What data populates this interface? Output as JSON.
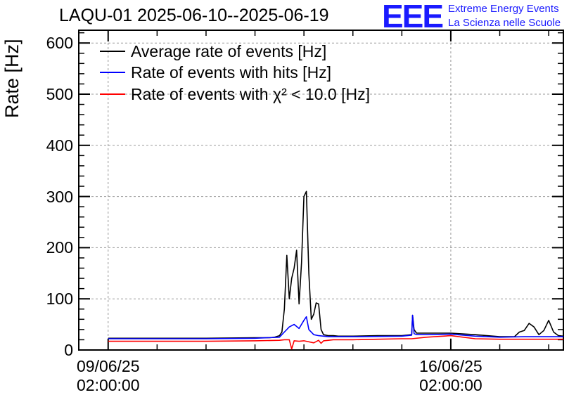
{
  "chart_data": {
    "type": "line",
    "title": "LAQU-01 2025-06-10--2025-06-19",
    "ylabel": "Rate [Hz]",
    "xlabel": "",
    "ylim": [
      0,
      625
    ],
    "xlim_days": [
      -0.6,
      9.3
    ],
    "x_unit": "days since 09/06/25 02:00:00",
    "y_ticks": [
      0,
      100,
      200,
      300,
      400,
      500,
      600
    ],
    "x_ticks": [
      {
        "value": 0,
        "line1": "09/06/25",
        "line2": "02:00:00"
      },
      {
        "value": 7,
        "line1": "16/06/25",
        "line2": "02:00:00"
      }
    ],
    "grid": true,
    "legend_position": "top-left",
    "series": [
      {
        "name": "Average rate of events [Hz]",
        "color": "#000000",
        "x": [
          0.0,
          1.0,
          2.0,
          3.0,
          3.3,
          3.4,
          3.5,
          3.55,
          3.6,
          3.65,
          3.7,
          3.75,
          3.8,
          3.85,
          3.9,
          3.95,
          4.0,
          4.05,
          4.1,
          4.15,
          4.2,
          4.25,
          4.3,
          4.35,
          4.4,
          4.5,
          4.6,
          4.7,
          4.8,
          4.9,
          5.0,
          5.5,
          6.0,
          6.2,
          6.22,
          6.25,
          6.3,
          6.5,
          7.0,
          7.5,
          8.0,
          8.3,
          8.4,
          8.5,
          8.6,
          8.7,
          8.8,
          8.9,
          9.0,
          9.1,
          9.2,
          9.3
        ],
        "y": [
          23,
          23,
          23,
          24,
          24,
          25,
          28,
          35,
          80,
          185,
          100,
          140,
          160,
          195,
          90,
          170,
          300,
          310,
          150,
          60,
          70,
          92,
          90,
          40,
          30,
          28,
          28,
          27,
          27,
          27,
          27,
          28,
          28,
          30,
          68,
          40,
          33,
          33,
          33,
          30,
          26,
          26,
          35,
          38,
          52,
          45,
          30,
          38,
          58,
          35,
          28,
          27
        ]
      },
      {
        "name": "Rate of events with hits [Hz]",
        "color": "#0000ff",
        "x": [
          0.0,
          1.0,
          2.0,
          3.0,
          3.5,
          3.6,
          3.7,
          3.8,
          3.9,
          4.0,
          4.05,
          4.1,
          4.2,
          4.3,
          4.4,
          4.5,
          5.0,
          6.0,
          6.2,
          6.22,
          6.25,
          6.3,
          6.5,
          7.0,
          7.5,
          8.0,
          8.5,
          9.0,
          9.3
        ],
        "y": [
          22,
          22,
          22,
          23,
          25,
          35,
          45,
          50,
          42,
          58,
          65,
          40,
          30,
          28,
          27,
          26,
          26,
          27,
          29,
          68,
          32,
          30,
          30,
          31,
          27,
          25,
          26,
          26,
          26
        ]
      },
      {
        "name": "Rate of events with χ² < 10.0 [Hz]",
        "color": "#ff0000",
        "x": [
          0.0,
          1.0,
          2.0,
          3.0,
          3.5,
          3.6,
          3.7,
          3.75,
          3.8,
          3.9,
          4.0,
          4.2,
          4.3,
          4.35,
          4.4,
          4.6,
          5.0,
          5.5,
          6.0,
          6.2,
          6.5,
          7.0,
          7.5,
          8.0,
          8.5,
          9.0,
          9.3
        ],
        "y": [
          17,
          17,
          17,
          18,
          19,
          20,
          20,
          2,
          18,
          17,
          18,
          14,
          19,
          13,
          18,
          20,
          20,
          21,
          22,
          22,
          25,
          28,
          22,
          21,
          21,
          21,
          21
        ]
      }
    ]
  }
}
